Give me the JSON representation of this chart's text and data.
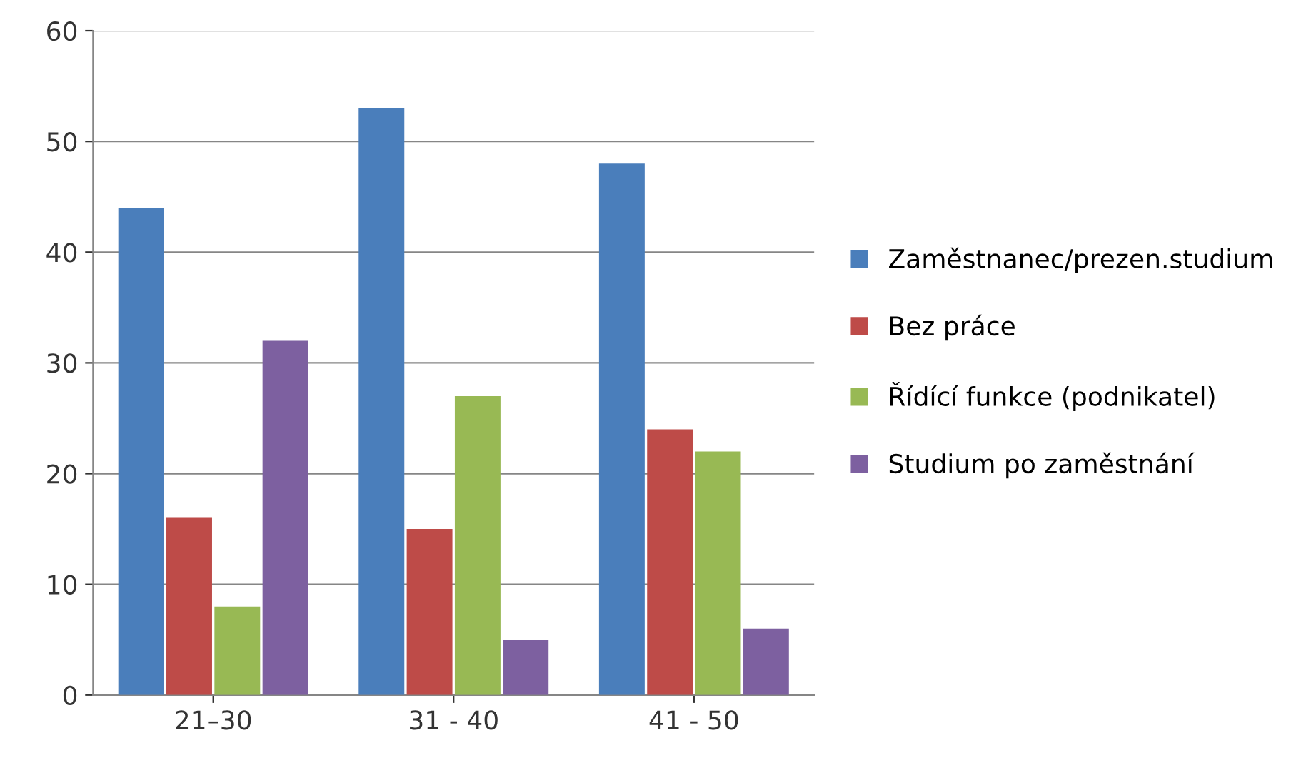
{
  "chart_data": {
    "type": "bar",
    "categories": [
      "21–30",
      "31 - 40",
      "41 - 50"
    ],
    "series": [
      {
        "name": "Zaměstnanec/prezen.studium",
        "color": "#4a7ebb",
        "values": [
          44,
          53,
          48
        ]
      },
      {
        "name": "Bez práce",
        "color": "#be4b48",
        "values": [
          16,
          15,
          24
        ]
      },
      {
        "name": "Řídící funkce (podnikatel)",
        "color": "#98b954",
        "values": [
          8,
          27,
          22
        ]
      },
      {
        "name": "Studium po zaměstnání",
        "color": "#7d60a0",
        "values": [
          32,
          5,
          6
        ]
      }
    ],
    "ylim": [
      0,
      60
    ],
    "yticks": [
      0,
      10,
      20,
      30,
      40,
      50,
      60
    ],
    "grid": "y",
    "legend": "right"
  }
}
